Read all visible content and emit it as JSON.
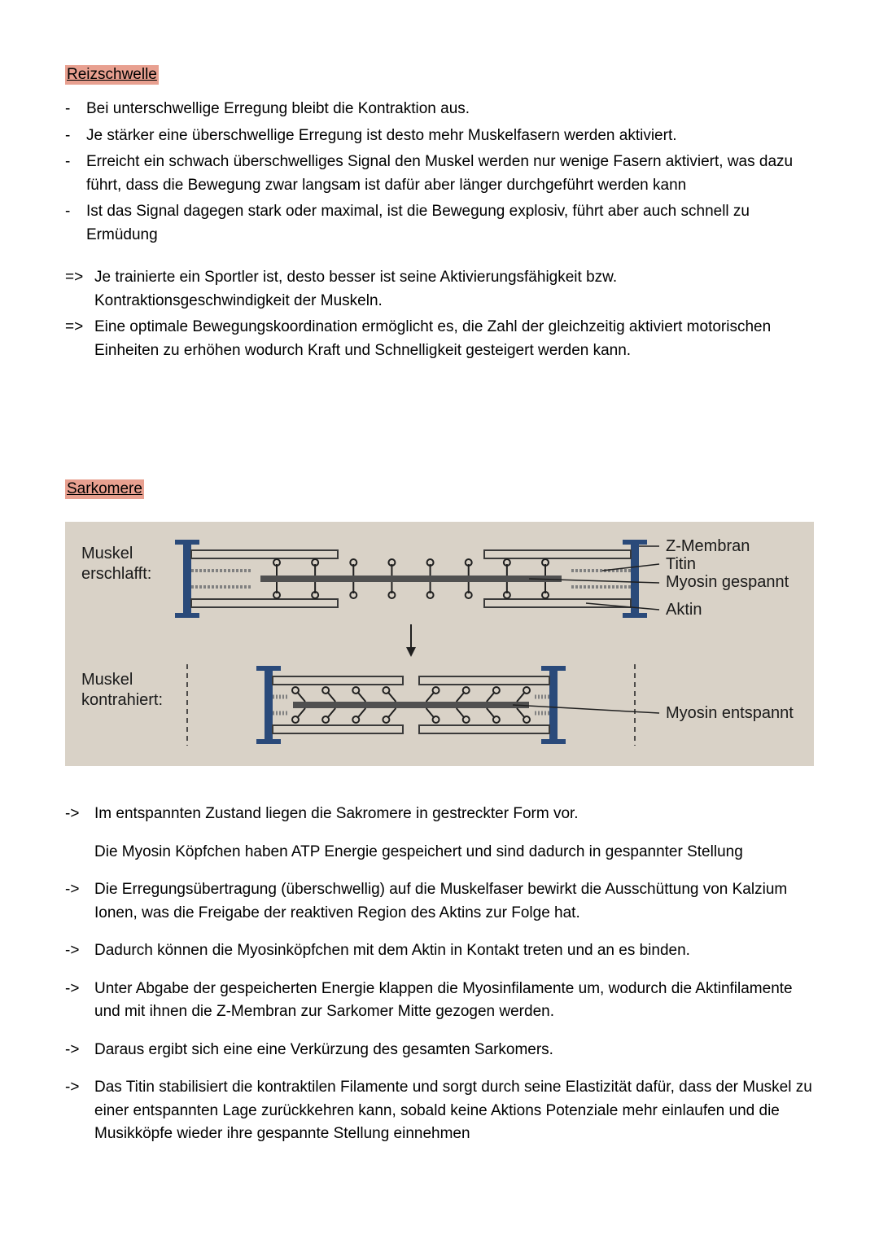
{
  "section1": {
    "heading": "Reizschwelle",
    "bullets": [
      {
        "mark": "-",
        "text": "Bei unterschwellige Erregung bleibt die Kontraktion aus."
      },
      {
        "mark": "-",
        "text": "Je stärker eine überschwellige Erregung ist desto mehr Muskelfasern werden aktiviert."
      },
      {
        "mark": "-",
        "text": "Erreicht ein schwach überschwelliges Signal den Muskel werden nur wenige Fasern aktiviert, was dazu führt, dass die Bewegung zwar langsam ist dafür aber länger durchgeführt werden kann"
      },
      {
        "mark": "-",
        "text": "Ist das Signal dagegen stark oder maximal, ist die Bewegung explosiv, führt aber auch schnell zu Ermüdung"
      }
    ],
    "conclusions": [
      {
        "mark": "=>",
        "text": "Je trainierte ein Sportler ist, desto besser ist seine Aktivierungsfähigkeit bzw. Kontraktionsgeschwindigkeit der Muskeln."
      },
      {
        "mark": "=>",
        "text": "Eine optimale Bewegungskoordination ermöglicht es, die Zahl der gleichzeitig aktiviert motorischen Einheiten zu erhöhen wodurch Kraft und Schnelligkeit gesteigert werden kann."
      }
    ]
  },
  "section2": {
    "heading": "Sarkomere",
    "diagram": {
      "bg_color": "#d9d2c7",
      "z_color": "#2a4a7a",
      "actin_color": "#3a3a3a",
      "myosin_color": "#505050",
      "titin_color": "#808080",
      "line_color": "#202020",
      "text_color": "#1a1a1a",
      "label_left_top": "Muskel erschlafft:",
      "label_left_bottom": "Muskel kontrahiert:",
      "label_r1": "Z-Membran",
      "label_r2": "Titin",
      "label_r3": "Myosin gespannt",
      "label_r4": "Aktin",
      "label_r5": "Myosin entspannt",
      "font_family": "Arial",
      "label_fontsize": 20
    },
    "arrows": [
      {
        "mark": "->",
        "text": "Im entspannten Zustand liegen die Sakromere in gestreckter Form vor.",
        "sub": "Die Myosin Köpfchen haben ATP Energie gespeichert und sind dadurch in gespannter Stellung"
      },
      {
        "mark": "->",
        "text": "Die Erregungsübertragung (überschwellig) auf die Muskelfaser bewirkt die Ausschüttung von Kalzium Ionen, was die Freigabe der reaktiven Region des Aktins zur Folge hat."
      },
      {
        "mark": "->",
        "text": "Dadurch können die Myosinköpfchen mit dem Aktin in Kontakt treten und an es binden."
      },
      {
        "mark": "->",
        "text": "Unter Abgabe der gespeicherten Energie klappen die Myosinfilamente um, wodurch die Aktinfilamente und mit ihnen die Z-Membran zur Sarkomer Mitte gezogen werden."
      },
      {
        "mark": "->",
        "text": "Daraus ergibt sich eine eine Verkürzung des gesamten Sarkomers."
      },
      {
        "mark": "->",
        "text": "Das Titin stabilisiert die kontraktilen Filamente und sorgt durch seine Elastizität dafür, dass der Muskel zu einer entspannten Lage zurückkehren kann, sobald keine Aktions Potenziale mehr einlaufen und die Musikköpfe wieder ihre gespannte Stellung einnehmen"
      }
    ]
  },
  "style": {
    "highlight_color": "#e8a090",
    "body_fontsize": 19,
    "body_color": "#000000",
    "page_bg": "#ffffff"
  }
}
